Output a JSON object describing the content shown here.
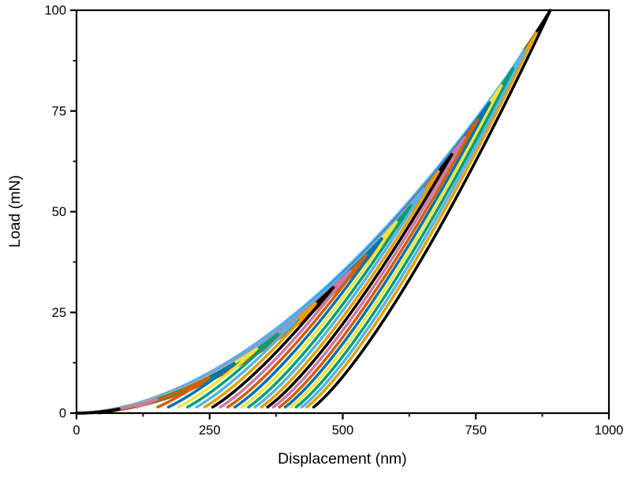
{
  "figure": {
    "background": "#ffffff",
    "axis_color": "#000000"
  },
  "chart_data": {
    "type": "line",
    "title": "",
    "xlabel": "Displacement (nm)",
    "ylabel": "Load (mN)",
    "xlim": [
      0,
      1000
    ],
    "ylim": [
      0,
      100
    ],
    "x_major_ticks": [
      0,
      250,
      500,
      750,
      1000
    ],
    "x_minor_ticks": [
      125,
      375,
      625,
      875
    ],
    "y_major_ticks": [
      0,
      25,
      50,
      75,
      100
    ],
    "y_minor_ticks": [
      12.5,
      37.5,
      62.5,
      87.5
    ],
    "grid": false,
    "legend": "none",
    "frame": "full-box",
    "palette_cycle_largest_to_smallest": [
      "#000000",
      "#E69F00",
      "#56B4E9",
      "#009E73",
      "#F0E442",
      "#0072B2",
      "#D55E00",
      "#CC79A7"
    ],
    "curve_model": {
      "description": "25 nanoindentation load-unload loops; loading P = Pmax*(h/hmax)^load_exp from origin, unloading h = h_res + (hmax - h_res)*(P/Pmax)^(1/unload_exp), unloading truncated near 1.5 mN",
      "n_curves": 25,
      "unload_exponent": 1.3,
      "unload_cutoff_mN": 1.5,
      "envelope_exponent": 1.9,
      "stroke_width_px": 3.6
    },
    "series": [
      {
        "index": 1,
        "color": "#000000",
        "h_max_nm": 80,
        "p_max_mN": 1.03,
        "load_exp": 1.968,
        "h_res_nm": 38.4
      },
      {
        "index": 2,
        "color": "#CC79A7",
        "h_max_nm": 150,
        "p_max_mN": 3.39,
        "load_exp": 1.8,
        "h_res_nm": 72.0
      },
      {
        "index": 3,
        "color": "#D55E00",
        "h_max_nm": 249,
        "p_max_mN": 8.89,
        "load_exp": 1.979,
        "h_res_nm": 119.5
      },
      {
        "index": 4,
        "color": "#0072B2",
        "h_max_nm": 296,
        "p_max_mN": 12.35,
        "load_exp": 1.883,
        "h_res_nm": 142.1
      },
      {
        "index": 5,
        "color": "#F0E442",
        "h_max_nm": 339,
        "p_max_mN": 15.98,
        "load_exp": 1.846,
        "h_res_nm": 162.7
      },
      {
        "index": 6,
        "color": "#009E73",
        "h_max_nm": 378,
        "p_max_mN": 19.65,
        "load_exp": 1.997,
        "h_res_nm": 181.4
      },
      {
        "index": 7,
        "color": "#56B4E9",
        "h_max_nm": 415,
        "p_max_mN": 23.47,
        "load_exp": 1.811,
        "h_res_nm": 199.2
      },
      {
        "index": 8,
        "color": "#E69F00",
        "h_max_nm": 449,
        "p_max_mN": 27.25,
        "load_exp": 1.934,
        "h_res_nm": 215.5
      },
      {
        "index": 9,
        "color": "#000000",
        "h_max_nm": 482,
        "p_max_mN": 31.19,
        "load_exp": 1.939,
        "h_res_nm": 231.4
      },
      {
        "index": 10,
        "color": "#CC79A7",
        "h_max_nm": 514,
        "p_max_mN": 35.24,
        "load_exp": 1.809,
        "h_res_nm": 246.7
      },
      {
        "index": 11,
        "color": "#D55E00",
        "h_max_nm": 544,
        "p_max_mN": 39.25,
        "load_exp": 1.995,
        "h_res_nm": 261.1
      },
      {
        "index": 12,
        "color": "#0072B2",
        "h_max_nm": 573,
        "p_max_mN": 43.31,
        "load_exp": 1.851,
        "h_res_nm": 275.0
      },
      {
        "index": 13,
        "color": "#F0E442",
        "h_max_nm": 601,
        "p_max_mN": 47.43,
        "load_exp": 1.877,
        "h_res_nm": 288.5
      },
      {
        "index": 14,
        "color": "#009E73",
        "h_max_nm": 628,
        "p_max_mN": 51.56,
        "load_exp": 1.983,
        "h_res_nm": 301.4
      },
      {
        "index": 15,
        "color": "#56B4E9",
        "h_max_nm": 654,
        "p_max_mN": 55.69,
        "load_exp": 1.801,
        "h_res_nm": 313.9
      },
      {
        "index": 16,
        "color": "#E69F00",
        "h_max_nm": 680,
        "p_max_mN": 59.96,
        "load_exp": 1.963,
        "h_res_nm": 326.4
      },
      {
        "index": 17,
        "color": "#000000",
        "h_max_nm": 705,
        "p_max_mN": 64.22,
        "load_exp": 1.906,
        "h_res_nm": 338.4
      },
      {
        "index": 18,
        "color": "#CC79A7",
        "h_max_nm": 729,
        "p_max_mN": 68.44,
        "load_exp": 1.828,
        "h_res_nm": 349.9
      },
      {
        "index": 19,
        "color": "#D55E00",
        "h_max_nm": 753,
        "p_max_mN": 72.78,
        "load_exp": 2.0,
        "h_res_nm": 361.4
      },
      {
        "index": 20,
        "color": "#0072B2",
        "h_max_nm": 776,
        "p_max_mN": 77.07,
        "load_exp": 1.824,
        "h_res_nm": 372.5
      },
      {
        "index": 21,
        "color": "#F0E442",
        "h_max_nm": 798,
        "p_max_mN": 81.28,
        "load_exp": 1.911,
        "h_res_nm": 383.0
      },
      {
        "index": 22,
        "color": "#009E73",
        "h_max_nm": 820,
        "p_max_mN": 85.57,
        "load_exp": 1.959,
        "h_res_nm": 393.6
      },
      {
        "index": 23,
        "color": "#56B4E9",
        "h_max_nm": 842,
        "p_max_mN": 90.01,
        "load_exp": 1.802,
        "h_res_nm": 404.2
      },
      {
        "index": 24,
        "color": "#E69F00",
        "h_max_nm": 863,
        "p_max_mN": 94.32,
        "load_exp": 1.986,
        "h_res_nm": 414.2
      },
      {
        "index": 25,
        "color": "#000000",
        "h_max_nm": 890,
        "p_max_mN": 100.0,
        "load_exp": 1.872,
        "h_res_nm": 427.2
      }
    ]
  }
}
